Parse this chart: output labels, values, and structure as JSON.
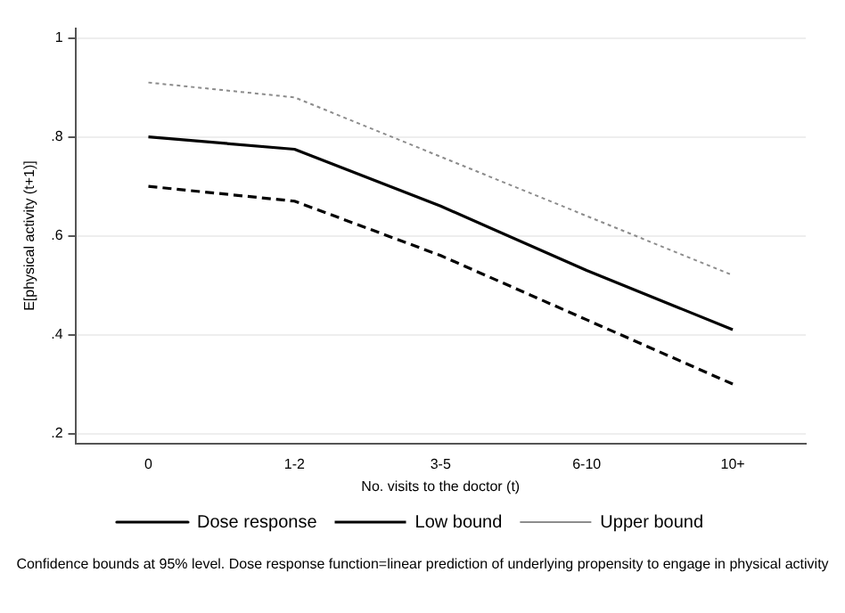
{
  "chart_data": {
    "type": "line",
    "xlabel": "No. visits to the doctor (t)",
    "ylabel": "E[physical activity (t+1)]",
    "categories": [
      "0",
      "1-2",
      "3-5",
      "6-10",
      "10+"
    ],
    "series": [
      {
        "name": "Dose response",
        "color": "#000000",
        "line_style": "solid",
        "values": [
          0.8,
          0.775,
          0.66,
          0.53,
          0.41
        ]
      },
      {
        "name": "Low bound",
        "color": "#000000",
        "line_style": "dashed",
        "values": [
          0.7,
          0.67,
          0.56,
          0.43,
          0.3
        ]
      },
      {
        "name": "Upper bound",
        "color": "#8c8c8c",
        "line_style": "dotted",
        "values": [
          0.91,
          0.88,
          0.76,
          0.64,
          0.52
        ]
      }
    ],
    "ylim": [
      0.18,
      1.02
    ],
    "yticks": [
      {
        "value": 0.2,
        "label": ".2"
      },
      {
        "value": 0.4,
        "label": ".4"
      },
      {
        "value": 0.6,
        "label": ".6"
      },
      {
        "value": 0.8,
        "label": ".8"
      },
      1
    ],
    "grid": "y",
    "legend": "bottom",
    "marker": "none",
    "annotations": [
      "Confidence bounds at 95% level. Dose response function=linear prediction of underlying propensity to engage in physical activity"
    ]
  }
}
